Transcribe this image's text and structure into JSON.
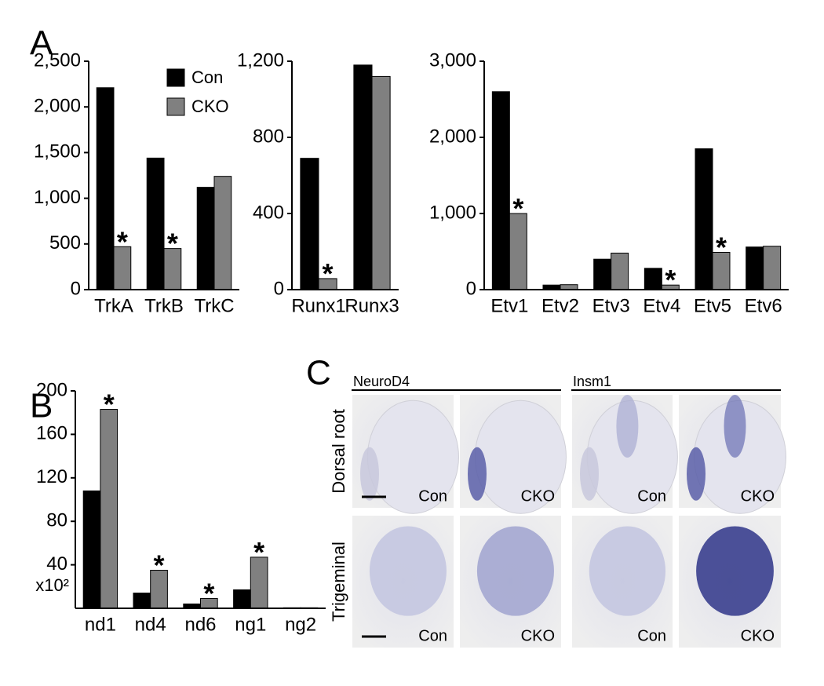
{
  "chart_data": [
    {
      "type": "bar",
      "panel": "A",
      "categories": [
        "TrkA",
        "TrkB",
        "TrkC"
      ],
      "series": [
        {
          "name": "Con",
          "color": "#000000",
          "values": [
            2210,
            1440,
            1120
          ]
        },
        {
          "name": "CKO",
          "color": "#808080",
          "values": [
            470,
            450,
            1240
          ]
        }
      ],
      "ylim": [
        0,
        2500
      ],
      "yticks": [
        0,
        500,
        {
          "value": 1000,
          "label": "1,000"
        },
        {
          "value": 1500,
          "label": "1,500"
        },
        {
          "value": 2000,
          "label": "2,000"
        },
        {
          "value": 2500,
          "label": "2,500"
        }
      ],
      "legend": "upper center",
      "annotations": [
        {
          "text": "*",
          "category": "TrkA",
          "series": "CKO"
        },
        {
          "text": "*",
          "category": "TrkB",
          "series": "CKO"
        }
      ]
    },
    {
      "type": "bar",
      "categories": [
        "Runx1",
        "Runx3"
      ],
      "series": [
        {
          "name": "Con",
          "color": "#000000",
          "values": [
            690,
            1180
          ]
        },
        {
          "name": "CKO",
          "color": "#808080",
          "values": [
            58,
            1120
          ]
        }
      ],
      "ylim": [
        0,
        1200
      ],
      "yticks": [
        0,
        400,
        800,
        {
          "value": 1200,
          "label": "1,200"
        }
      ],
      "annotations": [
        {
          "text": "*",
          "category": "Runx1",
          "series": "CKO"
        }
      ]
    },
    {
      "type": "bar",
      "categories": [
        "Etv1",
        "Etv2",
        "Etv3",
        "Etv4",
        "Etv5",
        "Etv6"
      ],
      "series": [
        {
          "name": "Con",
          "color": "#000000",
          "values": [
            2600,
            60,
            400,
            280,
            1850,
            560
          ]
        },
        {
          "name": "CKO",
          "color": "#808080",
          "values": [
            1000,
            65,
            480,
            60,
            490,
            570
          ]
        }
      ],
      "ylim": [
        0,
        3000
      ],
      "yticks": [
        0,
        {
          "value": 1000,
          "label": "1,000"
        },
        {
          "value": 2000,
          "label": "2,000"
        },
        {
          "value": 3000,
          "label": "3,000"
        }
      ],
      "annotations": [
        {
          "text": "*",
          "category": "Etv1",
          "series": "CKO"
        },
        {
          "text": "*",
          "category": "Etv4",
          "series": "CKO"
        },
        {
          "text": "*",
          "category": "Etv5",
          "series": "CKO"
        }
      ]
    },
    {
      "type": "bar",
      "panel": "B",
      "categories": [
        "nd1",
        "nd4",
        "nd6",
        "ng1",
        "ng2"
      ],
      "series": [
        {
          "name": "Con",
          "color": "#000000",
          "values": [
            108,
            14,
            4,
            17,
            0.5
          ]
        },
        {
          "name": "CKO",
          "color": "#808080",
          "values": [
            183,
            35,
            9,
            47,
            0.5
          ]
        }
      ],
      "ylim": [
        0,
        200
      ],
      "yticks": [
        40,
        80,
        120,
        160,
        200
      ],
      "y_unit": "x10²",
      "annotations": [
        {
          "text": "*",
          "category": "nd1",
          "series": "CKO"
        },
        {
          "text": "*",
          "category": "nd4",
          "series": "CKO"
        },
        {
          "text": "*",
          "category": "nd6",
          "series": "CKO"
        },
        {
          "text": "*",
          "category": "ng1",
          "series": "CKO"
        }
      ]
    }
  ],
  "figure_c": {
    "panel": "C",
    "columns": [
      "NeuroD4",
      "Insm1"
    ],
    "rows": [
      "Dorsal root",
      "Trigeminal"
    ],
    "images": [
      [
        "Con",
        "CKO",
        "Con",
        "CKO"
      ],
      [
        "Con",
        "CKO",
        "Con",
        "CKO"
      ]
    ]
  }
}
